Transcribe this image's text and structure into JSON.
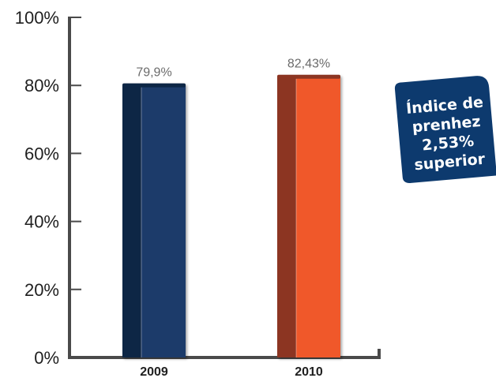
{
  "chart_data": {
    "type": "bar",
    "categories": [
      "2009",
      "2010"
    ],
    "values": [
      79.9,
      82.43
    ],
    "data_labels": [
      "79,9%",
      "82,43%"
    ],
    "ylim": [
      0,
      100
    ],
    "yticks": [
      0,
      20,
      40,
      60,
      80,
      100
    ],
    "ytick_labels": [
      "0%",
      "20%",
      "40%",
      "60%",
      "80%",
      "100%"
    ],
    "title": "",
    "xlabel": "",
    "ylabel": "",
    "grid": false,
    "legend": "none",
    "bar_colors": [
      "#1b3a6b",
      "#f0592a"
    ],
    "bar_shadow_colors": [
      "#0f2544",
      "#8c3520"
    ],
    "axis_color": "#4a4a4a"
  },
  "callout": {
    "lines": [
      "Índice de",
      "prenhez",
      "2,53%",
      "superior"
    ],
    "background": "#0d3a6e"
  }
}
